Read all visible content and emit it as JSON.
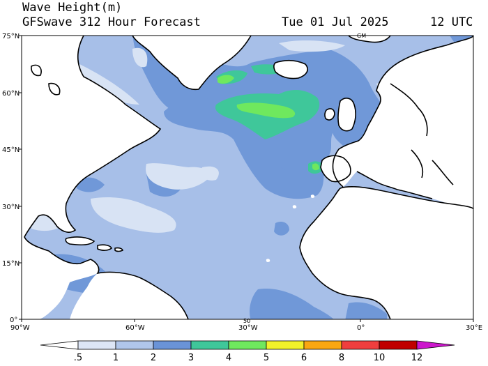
{
  "header": {
    "title": "Wave Height(m)",
    "subtitle": "GFSwave 312 Hour Forecast",
    "date": "Tue 01 Jul 2025",
    "time": "12 UTC"
  },
  "map": {
    "lat_labels": [
      "75°N",
      "60°N",
      "45°N",
      "30°N",
      "15°N",
      "0°"
    ],
    "lon_labels": [
      "90°W",
      "60°W",
      "30°W",
      "0°",
      "30°E"
    ],
    "inner_labels": [
      "50",
      "GM"
    ]
  },
  "colorbar": {
    "labels": [
      ".5",
      "1",
      "2",
      "3",
      "4",
      "5",
      "6",
      "8",
      "10",
      "12"
    ],
    "colors": [
      "#ffffff",
      "#dde6f6",
      "#b0c6ea",
      "#6a93d7",
      "#3fc79a",
      "#6fe85e",
      "#f2f22a",
      "#f9a712",
      "#ef3e3e",
      "#c00000",
      "#cc17cc"
    ]
  },
  "colors": {
    "ocean_base": "#a7bfe8",
    "calm": "#d8e3f4",
    "moderate": "#7098d8",
    "land": "#ffffff",
    "coast": "#000000"
  }
}
